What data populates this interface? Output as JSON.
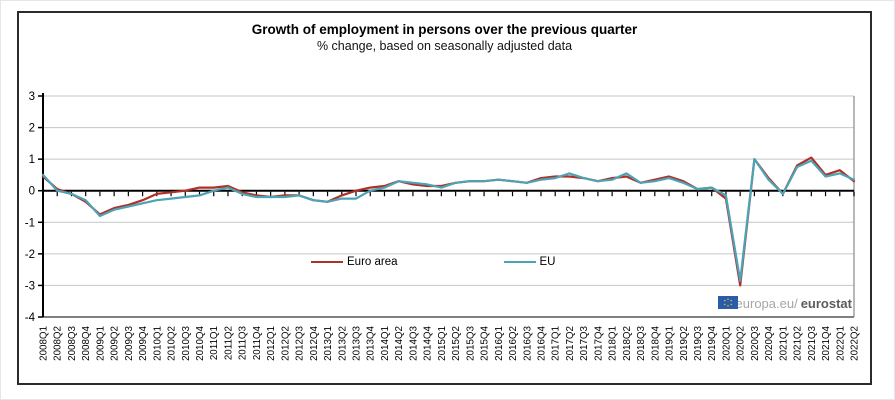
{
  "window": {
    "border_color": "#2b2b2b",
    "background": "#ffffff"
  },
  "chart": {
    "title": "Growth of employment in persons over the previous quarter",
    "subtitle": "% change, based on seasonally adjusted data",
    "watermark": {
      "prefix": "ec.europa.eu/",
      "bold": "eurostat"
    }
  },
  "chart_data": {
    "type": "line",
    "title": "Growth of employment in persons over the previous quarter",
    "subtitle": "% change, based on seasonally adjusted data",
    "xlabel": "",
    "ylabel": "",
    "ylim": [
      -4,
      3
    ],
    "yticks": [
      3,
      2,
      1,
      0,
      -1,
      -2,
      -3,
      -4
    ],
    "grid": "horizontal",
    "legend_position": "inside-bottom-center",
    "x_label_rotation": -90,
    "categories": [
      "2008Q1",
      "2008Q2",
      "2008Q3",
      "2008Q4",
      "2009Q1",
      "2009Q2",
      "2009Q3",
      "2009Q4",
      "2010Q1",
      "2010Q2",
      "2010Q3",
      "2010Q4",
      "2011Q1",
      "2011Q2",
      "2011Q3",
      "2011Q4",
      "2012Q1",
      "2012Q2",
      "2012Q3",
      "2012Q4",
      "2013Q1",
      "2013Q2",
      "2013Q3",
      "2013Q4",
      "2014Q1",
      "2014Q2",
      "2014Q3",
      "2014Q4",
      "2015Q1",
      "2015Q2",
      "2015Q3",
      "2015Q4",
      "2016Q1",
      "2016Q2",
      "2016Q3",
      "2016Q4",
      "2017Q1",
      "2017Q2",
      "2017Q3",
      "2017Q4",
      "2018Q1",
      "2018Q2",
      "2018Q3",
      "2018Q4",
      "2019Q1",
      "2019Q2",
      "2019Q3",
      "2019Q4",
      "2020Q1",
      "2020Q2",
      "2020Q3",
      "2020Q4",
      "2021Q1",
      "2021Q2",
      "2021Q3",
      "2021Q4",
      "2022Q1",
      "2022Q2"
    ],
    "series": [
      {
        "name": "Euro area",
        "color": "#b03028",
        "values": [
          0.45,
          0.05,
          -0.1,
          -0.35,
          -0.75,
          -0.55,
          -0.45,
          -0.3,
          -0.1,
          -0.05,
          0.0,
          0.1,
          0.1,
          0.15,
          -0.05,
          -0.15,
          -0.2,
          -0.15,
          -0.15,
          -0.3,
          -0.35,
          -0.15,
          0.0,
          0.1,
          0.15,
          0.3,
          0.2,
          0.15,
          0.15,
          0.25,
          0.3,
          0.3,
          0.35,
          0.3,
          0.25,
          0.4,
          0.45,
          0.45,
          0.4,
          0.3,
          0.4,
          0.45,
          0.25,
          0.35,
          0.45,
          0.3,
          0.05,
          0.1,
          -0.25,
          -3.0,
          1.0,
          0.4,
          -0.1,
          0.8,
          1.05,
          0.5,
          0.65,
          0.3
        ]
      },
      {
        "name": "EU",
        "color": "#4ba3b5",
        "values": [
          0.5,
          0.0,
          -0.1,
          -0.3,
          -0.8,
          -0.6,
          -0.5,
          -0.4,
          -0.3,
          -0.25,
          -0.2,
          -0.15,
          0.0,
          0.1,
          -0.1,
          -0.2,
          -0.2,
          -0.2,
          -0.15,
          -0.3,
          -0.35,
          -0.25,
          -0.25,
          0.0,
          0.1,
          0.3,
          0.25,
          0.2,
          0.1,
          0.25,
          0.3,
          0.3,
          0.35,
          0.3,
          0.25,
          0.35,
          0.4,
          0.55,
          0.4,
          0.3,
          0.35,
          0.55,
          0.25,
          0.3,
          0.4,
          0.25,
          0.05,
          0.1,
          -0.15,
          -2.85,
          1.0,
          0.35,
          -0.1,
          0.75,
          0.95,
          0.45,
          0.55,
          0.35
        ]
      }
    ],
    "colors": {
      "axis": "#000000",
      "gridline": "#c6c6c6",
      "plot_border_right": "#a0a0a0",
      "plot_border_bottom": "#808080"
    }
  }
}
